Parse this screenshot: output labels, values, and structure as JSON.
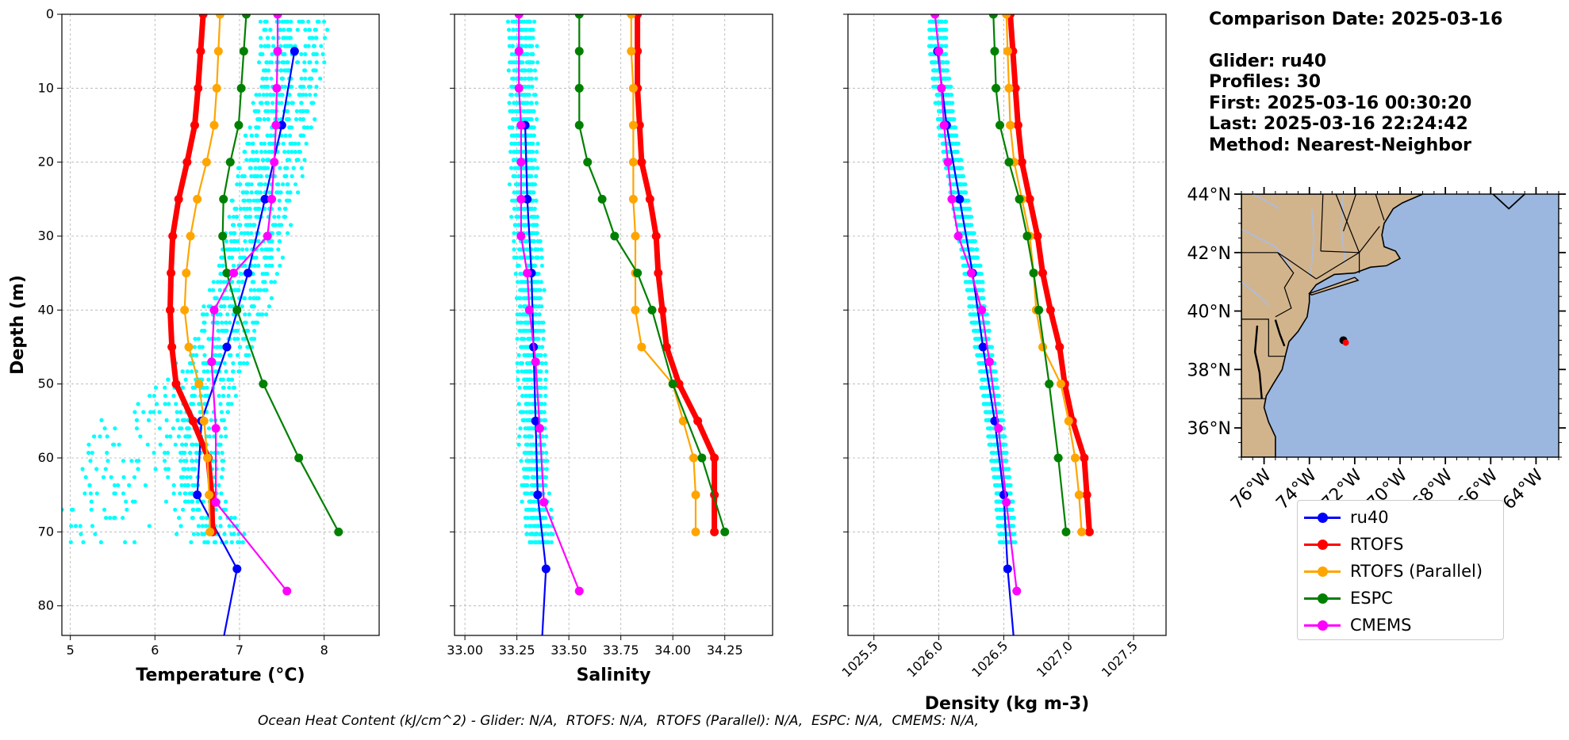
{
  "info": {
    "line1": "Comparison Date: 2025-03-16",
    "line2": "Glider: ru40",
    "line3": "Profiles: 30",
    "line4": "First: 2025-03-16 00:30:20",
    "line5": "Last: 2025-03-16 22:24:42",
    "line6": "Method: Nearest-Neighbor"
  },
  "footer": "Ocean Heat Content (kJ/cm^2) - Glider: N/A,  RTOFS: N/A,  RTOFS (Parallel): N/A,  ESPC: N/A,  CMEMS: N/A,",
  "legend": [
    {
      "label": "ru40",
      "color": "#0000ff"
    },
    {
      "label": "RTOFS",
      "color": "#ff0000"
    },
    {
      "label": "RTOFS (Parallel)",
      "color": "#ffa500"
    },
    {
      "label": "ESPC",
      "color": "#008000"
    },
    {
      "label": "CMEMS",
      "color": "#ff00ff"
    }
  ],
  "colors": {
    "glider_scatter": "#00ffff",
    "land": "#d2b48c",
    "ocean": "#9bb7e0",
    "rivers": "#a9bde6"
  },
  "chart_data": [
    {
      "type": "line",
      "xlabel": "Temperature (°C)",
      "ylabel": "Depth (m)",
      "xlim": [
        4.9,
        8.65
      ],
      "ylim": [
        84,
        0
      ],
      "xticks": [
        "5",
        "6",
        "7",
        "8"
      ],
      "xtick_values": [
        5,
        6,
        7,
        8
      ],
      "yticks": [
        "0",
        "10",
        "20",
        "30",
        "40",
        "50",
        "60",
        "70",
        "80"
      ],
      "grid": true,
      "series": [
        {
          "name": "ru40",
          "depth": [
            5,
            15,
            25,
            35,
            45,
            55,
            65,
            75,
            85
          ],
          "values": [
            7.65,
            7.5,
            7.3,
            7.1,
            6.85,
            6.55,
            6.5,
            6.97,
            6.8
          ]
        },
        {
          "name": "RTOFS",
          "depth": [
            0,
            5,
            10,
            15,
            20,
            25,
            30,
            35,
            40,
            45,
            50,
            55,
            60,
            65,
            70
          ],
          "values": [
            6.57,
            6.54,
            6.51,
            6.47,
            6.38,
            6.28,
            6.21,
            6.19,
            6.18,
            6.2,
            6.25,
            6.45,
            6.63,
            6.67,
            6.68
          ]
        },
        {
          "name": "RTOFS (Parallel)",
          "depth": [
            0,
            5,
            10,
            15,
            20,
            25,
            30,
            35,
            40,
            45,
            50,
            55,
            60,
            65,
            70
          ],
          "values": [
            6.77,
            6.75,
            6.73,
            6.7,
            6.61,
            6.5,
            6.42,
            6.37,
            6.35,
            6.4,
            6.52,
            6.58,
            6.62,
            6.64,
            6.65
          ]
        },
        {
          "name": "ESPC",
          "depth": [
            0,
            5,
            10,
            15,
            20,
            25,
            30,
            35,
            40,
            50,
            60,
            70
          ],
          "values": [
            7.08,
            7.05,
            7.02,
            6.99,
            6.89,
            6.81,
            6.8,
            6.85,
            6.97,
            7.28,
            7.7,
            8.17
          ]
        },
        {
          "name": "CMEMS",
          "depth": [
            0,
            5,
            10,
            15,
            20,
            25,
            30,
            35,
            40,
            47,
            56,
            66,
            78
          ],
          "values": [
            7.45,
            7.45,
            7.44,
            7.43,
            7.41,
            7.38,
            7.33,
            6.93,
            6.7,
            6.67,
            6.72,
            6.72,
            7.56
          ]
        }
      ]
    },
    {
      "type": "line",
      "xlabel": "Salinity",
      "xlim": [
        32.95,
        34.48
      ],
      "ylim": [
        84,
        0
      ],
      "xticks": [
        "33.00",
        "33.25",
        "33.50",
        "33.75",
        "34.00",
        "34.25"
      ],
      "xtick_values": [
        33.0,
        33.25,
        33.5,
        33.75,
        34.0,
        34.25
      ],
      "grid": true,
      "series": [
        {
          "name": "ru40",
          "depth": [
            15,
            25,
            35,
            45,
            55,
            65,
            75,
            85
          ],
          "values": [
            33.29,
            33.3,
            33.32,
            33.33,
            33.34,
            33.35,
            33.39,
            33.37
          ]
        },
        {
          "name": "RTOFS",
          "depth": [
            0,
            5,
            10,
            15,
            20,
            25,
            30,
            35,
            40,
            45,
            50,
            55,
            60,
            65,
            70
          ],
          "values": [
            33.83,
            33.83,
            33.83,
            33.84,
            33.85,
            33.89,
            33.92,
            33.93,
            33.95,
            33.97,
            34.03,
            34.12,
            34.2,
            34.2,
            34.2
          ]
        },
        {
          "name": "RTOFS (Parallel)",
          "depth": [
            0,
            5,
            10,
            15,
            20,
            25,
            30,
            35,
            40,
            45,
            50,
            55,
            60,
            65,
            70
          ],
          "values": [
            33.8,
            33.8,
            33.81,
            33.81,
            33.81,
            33.81,
            33.82,
            33.82,
            33.82,
            33.85,
            34.0,
            34.05,
            34.1,
            34.11,
            34.11
          ]
        },
        {
          "name": "ESPC",
          "depth": [
            0,
            5,
            10,
            15,
            20,
            25,
            30,
            35,
            40,
            50,
            60,
            70
          ],
          "values": [
            33.55,
            33.55,
            33.55,
            33.55,
            33.59,
            33.66,
            33.72,
            33.83,
            33.9,
            34.0,
            34.14,
            34.25
          ]
        },
        {
          "name": "CMEMS",
          "depth": [
            0,
            5,
            10,
            15,
            20,
            25,
            30,
            35,
            40,
            47,
            56,
            66,
            78
          ],
          "values": [
            33.26,
            33.26,
            33.26,
            33.27,
            33.27,
            33.27,
            33.27,
            33.3,
            33.31,
            33.34,
            33.36,
            33.38,
            33.55
          ]
        }
      ]
    },
    {
      "type": "line",
      "xlabel": "Density (kg m-3)",
      "xlim": [
        1025.3,
        1027.75
      ],
      "ylim": [
        84,
        0
      ],
      "xticks": [
        "1025.5",
        "1026.0",
        "1026.5",
        "1027.0",
        "1027.5"
      ],
      "xtick_values": [
        1025.5,
        1026.0,
        1026.5,
        1027.0,
        1027.5
      ],
      "grid": true,
      "series": [
        {
          "name": "ru40",
          "depth": [
            5,
            15,
            25,
            35,
            45,
            55,
            65,
            75,
            85
          ],
          "values": [
            1025.99,
            1026.06,
            1026.16,
            1026.26,
            1026.34,
            1026.43,
            1026.5,
            1026.53,
            1026.58
          ]
        },
        {
          "name": "RTOFS",
          "depth": [
            0,
            5,
            10,
            15,
            20,
            25,
            30,
            35,
            40,
            45,
            50,
            55,
            60,
            65,
            70
          ],
          "values": [
            1026.55,
            1026.57,
            1026.59,
            1026.61,
            1026.64,
            1026.7,
            1026.76,
            1026.8,
            1026.86,
            1026.93,
            1026.97,
            1027.03,
            1027.12,
            1027.14,
            1027.16
          ]
        },
        {
          "name": "RTOFS (Parallel)",
          "depth": [
            0,
            5,
            10,
            15,
            20,
            25,
            30,
            35,
            40,
            45,
            50,
            55,
            60,
            65,
            70
          ],
          "values": [
            1026.52,
            1026.53,
            1026.54,
            1026.55,
            1026.58,
            1026.64,
            1026.7,
            1026.73,
            1026.75,
            1026.8,
            1026.94,
            1027.0,
            1027.05,
            1027.08,
            1027.1
          ]
        },
        {
          "name": "ESPC",
          "depth": [
            0,
            5,
            10,
            15,
            20,
            25,
            30,
            35,
            40,
            50,
            60,
            70
          ],
          "values": [
            1026.42,
            1026.43,
            1026.44,
            1026.47,
            1026.54,
            1026.62,
            1026.68,
            1026.73,
            1026.77,
            1026.85,
            1026.92,
            1026.98
          ]
        },
        {
          "name": "CMEMS",
          "depth": [
            0,
            5,
            10,
            15,
            20,
            25,
            30,
            35,
            40,
            47,
            56,
            66,
            78
          ],
          "values": [
            1025.97,
            1026.0,
            1026.02,
            1026.04,
            1026.07,
            1026.1,
            1026.15,
            1026.25,
            1026.33,
            1026.39,
            1026.46,
            1026.52,
            1026.6
          ]
        }
      ]
    },
    {
      "type": "map",
      "lon_ticks": [
        "76°W",
        "74°W",
        "72°W",
        "70°W",
        "68°W",
        "66°W",
        "64°W"
      ],
      "lat_ticks": [
        "44°N",
        "42°N",
        "40°N",
        "38°N",
        "36°N"
      ],
      "lon_range": [
        -77,
        -63
      ],
      "lat_range": [
        35,
        44
      ],
      "glider_position": {
        "lon": -72.5,
        "lat": 39.0
      }
    }
  ]
}
